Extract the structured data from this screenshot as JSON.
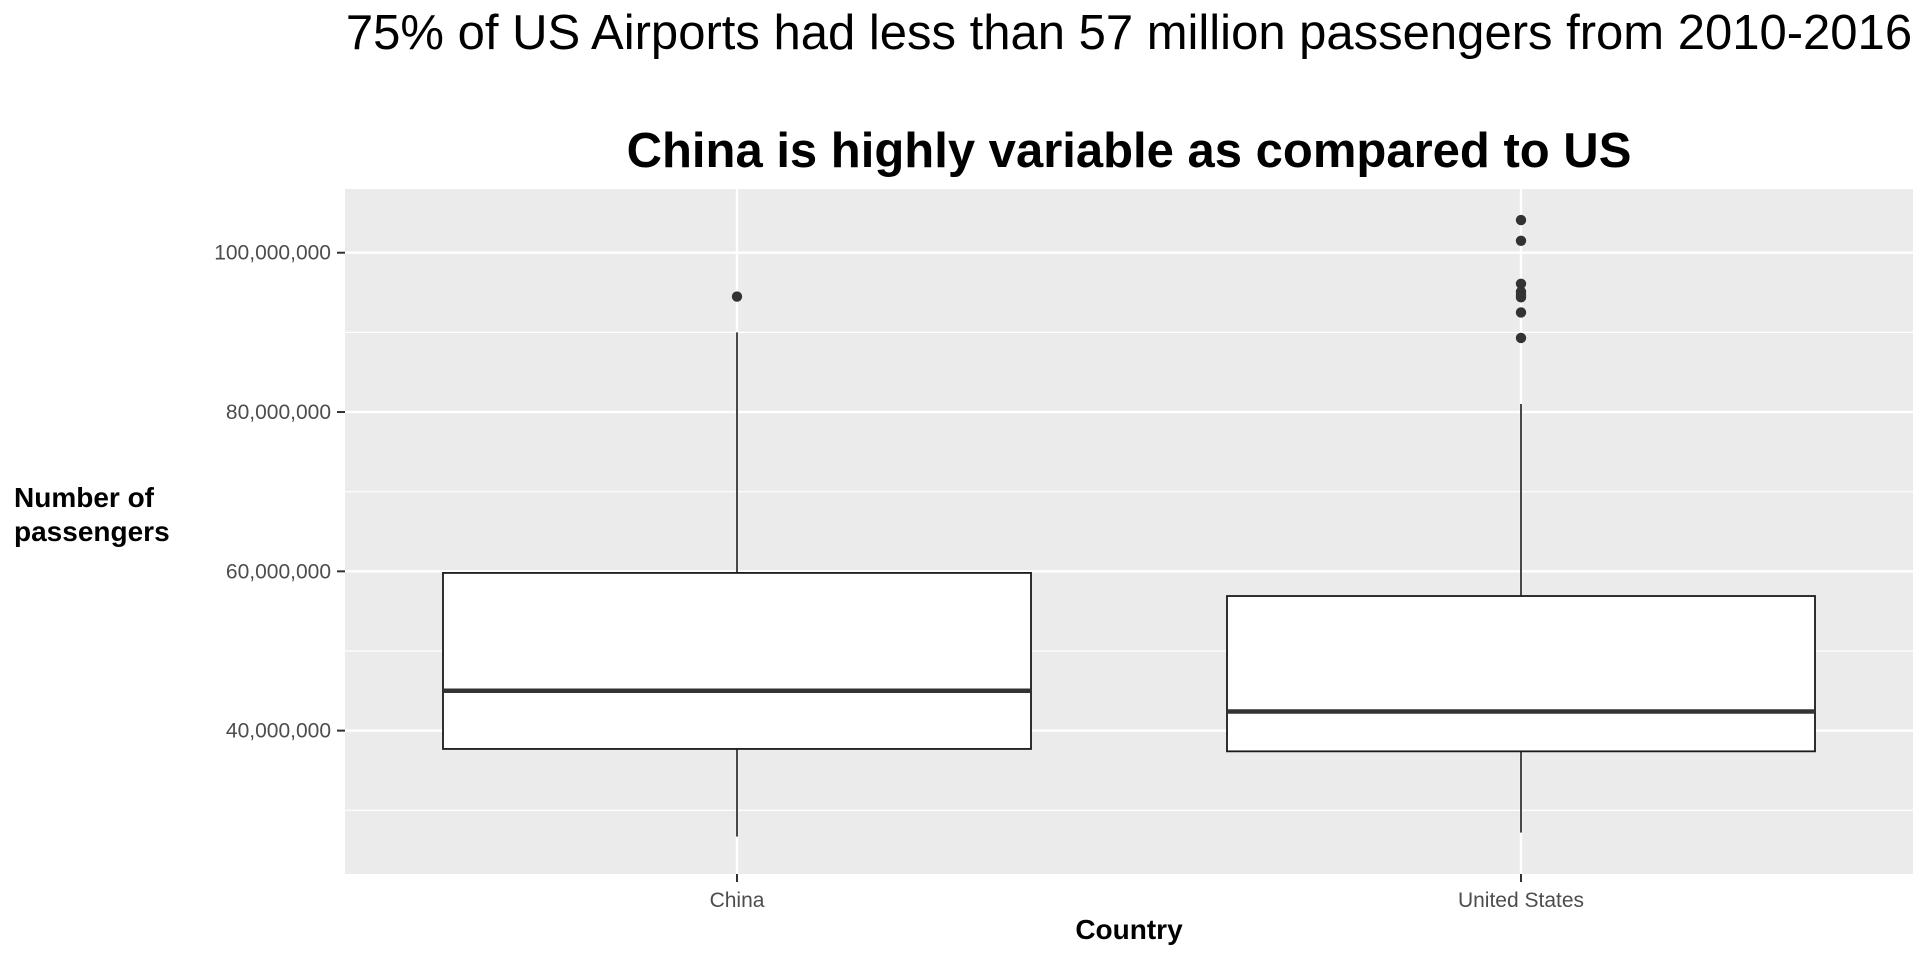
{
  "chart_data": {
    "type": "boxplot",
    "title": "75% of US Airports had less than 57 million passengers from 2010-2016",
    "subtitle": "China is highly variable as compared to US",
    "xlabel": "Country",
    "ylabel": "Number of passengers",
    "ylim": [
      22000000,
      108000000
    ],
    "yticks": [
      40000000,
      60000000,
      80000000,
      100000000
    ],
    "ytick_labels": [
      "40,000,000",
      "60,000,000",
      "80,000,000",
      "100,000,000"
    ],
    "categories": [
      "China",
      "United States"
    ],
    "grid": true,
    "boxes": [
      {
        "category": "China",
        "whisker_low": 26700000,
        "q1": 37700000,
        "median": 45000000,
        "q3": 59800000,
        "whisker_high": 90000000,
        "outliers": [
          94500000
        ]
      },
      {
        "category": "United States",
        "whisker_low": 27200000,
        "q1": 37400000,
        "median": 42400000,
        "q3": 56900000,
        "whisker_high": 81000000,
        "outliers": [
          104100000,
          101500000,
          96100000,
          95100000,
          94700000,
          94400000,
          92500000,
          89300000
        ]
      }
    ],
    "colors": {
      "panel_background": "#ebebeb",
      "grid_major": "#ffffff",
      "box_fill": "#ffffff",
      "box_stroke": "#1a1a1a",
      "outlier": "#333333"
    }
  }
}
